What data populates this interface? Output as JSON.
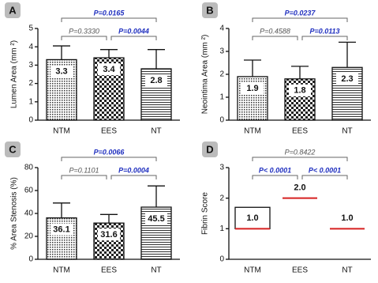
{
  "chart_data": [
    {
      "type": "bar",
      "panel": "A",
      "y_label": "Lumen Area (mm ²)",
      "categories": [
        "NTM",
        "EES",
        "NT"
      ],
      "values": [
        3.3,
        3.4,
        2.8
      ],
      "errors": [
        0.75,
        0.45,
        1.05
      ],
      "ylim": [
        0,
        5
      ],
      "yticks": [
        0,
        1,
        2,
        3,
        4,
        5
      ],
      "comparisons": [
        {
          "label": "P=0.3330",
          "color": "#555555"
        },
        {
          "label": "P=0.0044",
          "color": "#1f2fbf"
        },
        {
          "label": "P=0.0165",
          "color": "#1f2fbf"
        }
      ]
    },
    {
      "type": "bar",
      "panel": "B",
      "y_label": "Neointima Area (mm ²)",
      "categories": [
        "NTM",
        "EES",
        "NT"
      ],
      "values": [
        1.9,
        1.8,
        2.3
      ],
      "errors": [
        0.72,
        0.55,
        1.1
      ],
      "ylim": [
        0,
        4
      ],
      "yticks": [
        0,
        1,
        2,
        3,
        4
      ],
      "comparisons": [
        {
          "label": "P=0.4588",
          "color": "#555555"
        },
        {
          "label": "P=0.0113",
          "color": "#1f2fbf"
        },
        {
          "label": "P=0.0237",
          "color": "#1f2fbf"
        }
      ]
    },
    {
      "type": "bar",
      "panel": "C",
      "y_label": "% Area Stenosis (%)",
      "categories": [
        "NTM",
        "EES",
        "NT"
      ],
      "values": [
        36.1,
        31.6,
        45.5
      ],
      "errors": [
        13,
        7.5,
        18.5
      ],
      "ylim": [
        0,
        80
      ],
      "yticks": [
        0,
        20,
        40,
        60,
        80
      ],
      "comparisons": [
        {
          "label": "P=0.1101",
          "color": "#555555"
        },
        {
          "label": "P=0.0004",
          "color": "#1f2fbf"
        },
        {
          "label": "P=0.0066",
          "color": "#1f2fbf"
        }
      ]
    },
    {
      "type": "floating",
      "panel": "D",
      "y_label": "Fibrin Score",
      "categories": [
        "NTM",
        "EES",
        "NT"
      ],
      "values": [
        1.0,
        2.0,
        1.0
      ],
      "value_labels": [
        "1.0",
        "2.0",
        "1.0"
      ],
      "upper": [
        1.7,
        2.0,
        1.0
      ],
      "median_color": "#d62020",
      "ylim": [
        0,
        3
      ],
      "yticks": [
        0,
        1,
        2,
        3
      ],
      "comparisons": [
        {
          "label": "P< 0.0001",
          "color": "#1f2fbf"
        },
        {
          "label": "P< 0.0001",
          "color": "#1f2fbf"
        },
        {
          "label": "P=0.8422",
          "color": "#555555"
        }
      ]
    }
  ]
}
